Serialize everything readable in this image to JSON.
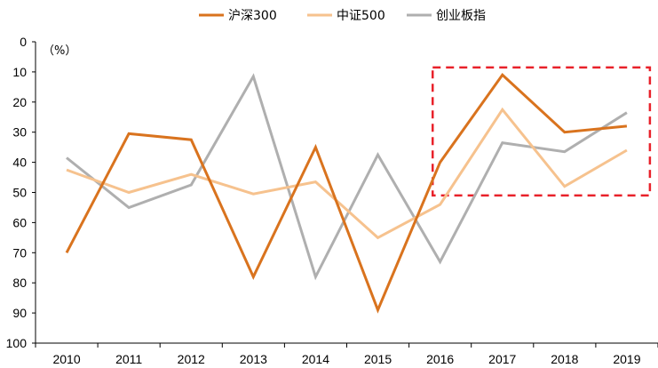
{
  "chart_data": {
    "type": "line",
    "categories": [
      "2010",
      "2011",
      "2012",
      "2013",
      "2014",
      "2015",
      "2016",
      "2017",
      "2018",
      "2019"
    ],
    "y_unit_label": "（%）",
    "ylim": [
      0,
      100
    ],
    "y_inverted": true,
    "y_ticks": [
      "0",
      "10",
      "20",
      "30",
      "40",
      "50",
      "60",
      "70",
      "80",
      "90",
      "100"
    ],
    "legend_position": "top-center",
    "grid": false,
    "series": [
      {
        "name": "沪深300",
        "color": "#D9731E",
        "values": [
          70,
          30.5,
          32.5,
          78,
          35,
          89,
          40,
          11,
          30,
          28
        ]
      },
      {
        "name": "中证500",
        "color": "#F6C28E",
        "values": [
          42.5,
          50,
          44,
          50.5,
          46.5,
          65,
          54,
          22.5,
          48,
          36
        ]
      },
      {
        "name": "创业板指",
        "color": "#AFAFAF",
        "values": [
          38.5,
          55,
          47.5,
          11.5,
          78,
          37.5,
          73,
          33.5,
          36.5,
          23.5
        ]
      }
    ],
    "highlight": {
      "x_from": "2016",
      "x_to": "2019",
      "y_from": 8.5,
      "y_to": 51,
      "color": "#E8212A",
      "style": "dashed"
    }
  }
}
